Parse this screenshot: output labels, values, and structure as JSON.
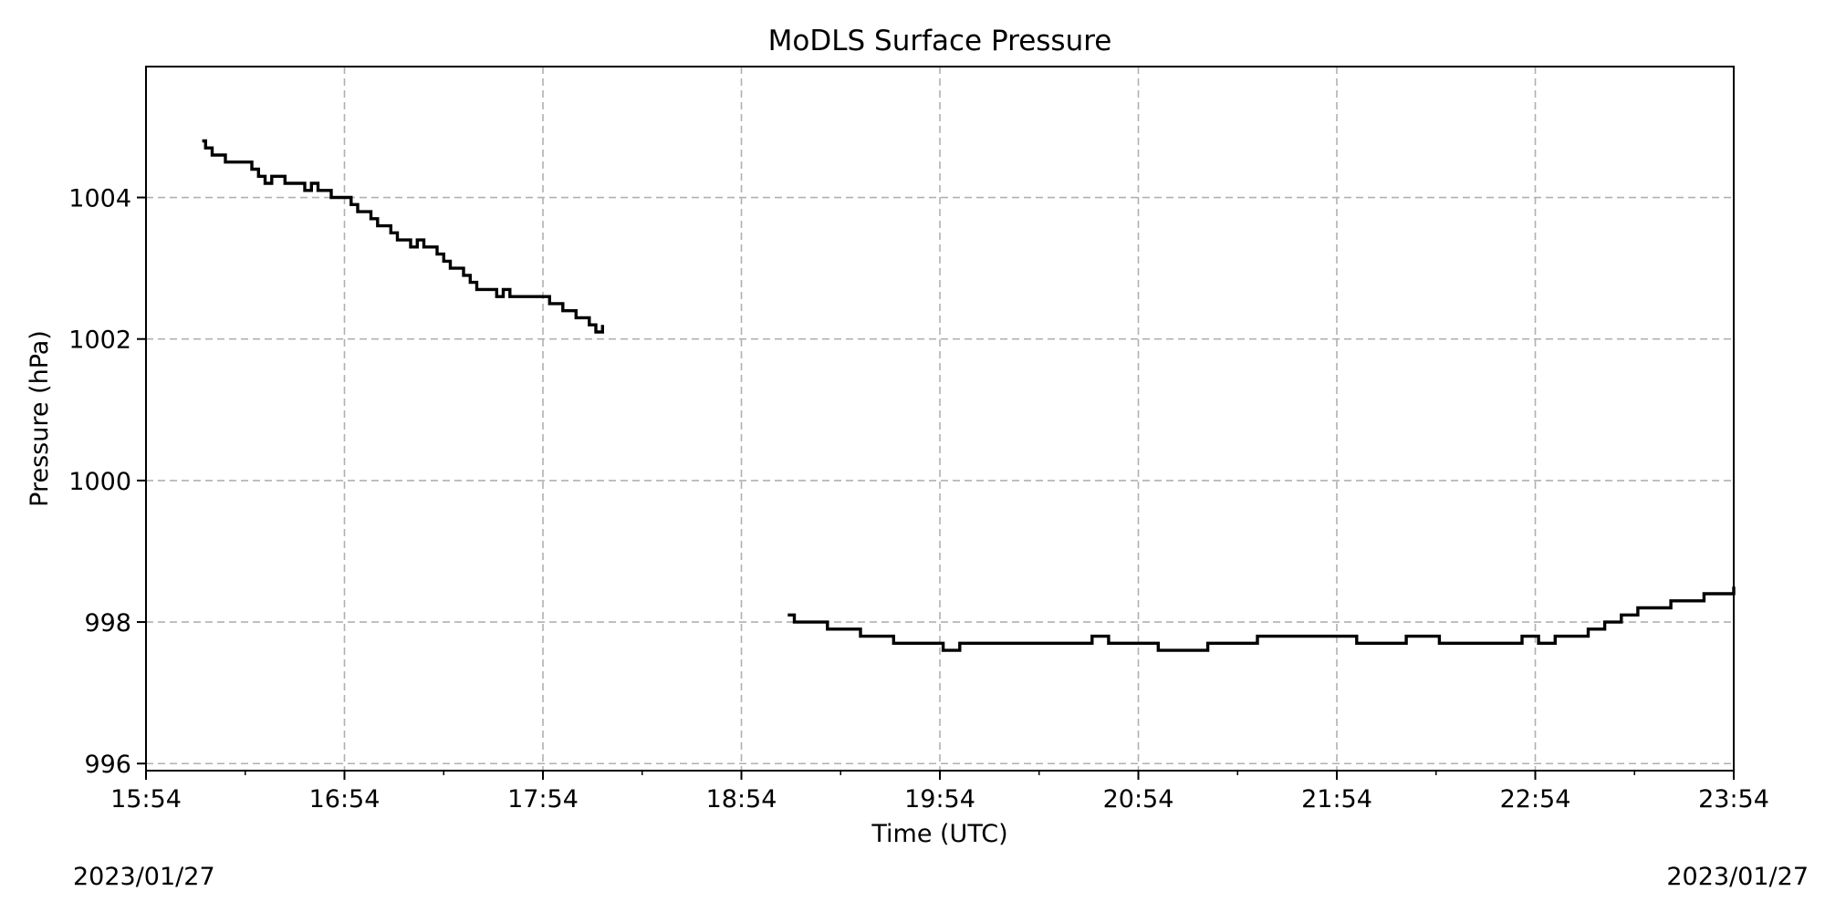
{
  "chart_data": {
    "type": "line",
    "title": "MoDLS Surface Pressure",
    "xlabel": "Time (UTC)",
    "ylabel": "Pressure (hPa)",
    "x_unit": "time (UTC), 2023/01/27",
    "xlim": [
      "15:54",
      "23:54"
    ],
    "ylim": [
      995.9,
      1005.85
    ],
    "x_ticks": [
      "15:54",
      "16:54",
      "17:54",
      "18:54",
      "19:54",
      "20:54",
      "21:54",
      "22:54",
      "23:54"
    ],
    "y_ticks": [
      996,
      998,
      1000,
      1002,
      1004
    ],
    "y_tick_labels": [
      "996",
      "998",
      "1000",
      "1002",
      "1004"
    ],
    "grid": true,
    "start_date": "2023/01/27",
    "end_date": "2023/01/27",
    "series": [
      {
        "color": "#000000",
        "segments": [
          {
            "x": [
              "16:11",
              "16:12",
              "16:14",
              "16:16",
              "16:18",
              "16:20",
              "16:22",
              "16:24",
              "16:26",
              "16:28",
              "16:30",
              "16:32",
              "16:34",
              "16:36",
              "16:38",
              "16:40",
              "16:42",
              "16:44",
              "16:46",
              "16:48",
              "16:50",
              "16:52",
              "16:54",
              "16:56",
              "16:58",
              "17:00",
              "17:02",
              "17:04",
              "17:06",
              "17:08",
              "17:10",
              "17:12",
              "17:14",
              "17:16",
              "17:18",
              "17:20",
              "17:22",
              "17:24",
              "17:26",
              "17:28",
              "17:30",
              "17:32",
              "17:34",
              "17:36",
              "17:38",
              "17:40",
              "17:42",
              "17:44",
              "17:46",
              "17:48",
              "17:50",
              "17:52",
              "17:54",
              "17:56",
              "17:58",
              "18:00",
              "18:02",
              "18:04",
              "18:06",
              "18:08",
              "18:10",
              "18:12"
            ],
            "y": [
              1004.8,
              1004.7,
              1004.6,
              1004.6,
              1004.5,
              1004.5,
              1004.5,
              1004.5,
              1004.4,
              1004.3,
              1004.2,
              1004.3,
              1004.3,
              1004.2,
              1004.2,
              1004.2,
              1004.1,
              1004.2,
              1004.1,
              1004.1,
              1004.0,
              1004.0,
              1004.0,
              1003.9,
              1003.8,
              1003.8,
              1003.7,
              1003.6,
              1003.6,
              1003.5,
              1003.4,
              1003.4,
              1003.3,
              1003.4,
              1003.3,
              1003.3,
              1003.2,
              1003.1,
              1003.0,
              1003.0,
              1002.9,
              1002.8,
              1002.7,
              1002.7,
              1002.7,
              1002.6,
              1002.7,
              1002.6,
              1002.6,
              1002.6,
              1002.6,
              1002.6,
              1002.6,
              1002.5,
              1002.5,
              1002.4,
              1002.4,
              1002.3,
              1002.3,
              1002.2,
              1002.1,
              1002.2
            ]
          },
          {
            "x": [
              "19:08",
              "19:10",
              "19:15",
              "19:20",
              "19:25",
              "19:30",
              "19:35",
              "19:40",
              "19:45",
              "19:50",
              "19:55",
              "20:00",
              "20:10",
              "20:20",
              "20:30",
              "20:40",
              "20:45",
              "20:50",
              "20:55",
              "21:00",
              "21:05",
              "21:10",
              "21:15",
              "21:20",
              "21:25",
              "21:30",
              "21:35",
              "21:40",
              "21:45",
              "21:50",
              "21:55",
              "22:00",
              "22:05",
              "22:10",
              "22:15",
              "22:20",
              "22:25",
              "22:30",
              "22:35",
              "22:40",
              "22:45",
              "22:50",
              "22:55",
              "23:00",
              "23:05",
              "23:10",
              "23:15",
              "23:20",
              "23:25",
              "23:30",
              "23:35",
              "23:40",
              "23:45",
              "23:50",
              "23:54"
            ],
            "y": [
              998.1,
              998.0,
              998.0,
              997.9,
              997.9,
              997.8,
              997.8,
              997.7,
              997.7,
              997.7,
              997.6,
              997.7,
              997.7,
              997.7,
              997.7,
              997.8,
              997.7,
              997.7,
              997.7,
              997.6,
              997.6,
              997.6,
              997.7,
              997.7,
              997.7,
              997.8,
              997.8,
              997.8,
              997.8,
              997.8,
              997.8,
              997.7,
              997.7,
              997.7,
              997.8,
              997.8,
              997.7,
              997.7,
              997.7,
              997.7,
              997.7,
              997.8,
              997.7,
              997.8,
              997.8,
              997.9,
              998.0,
              998.1,
              998.2,
              998.2,
              998.3,
              998.3,
              998.4,
              998.4,
              998.5
            ]
          }
        ]
      }
    ]
  }
}
